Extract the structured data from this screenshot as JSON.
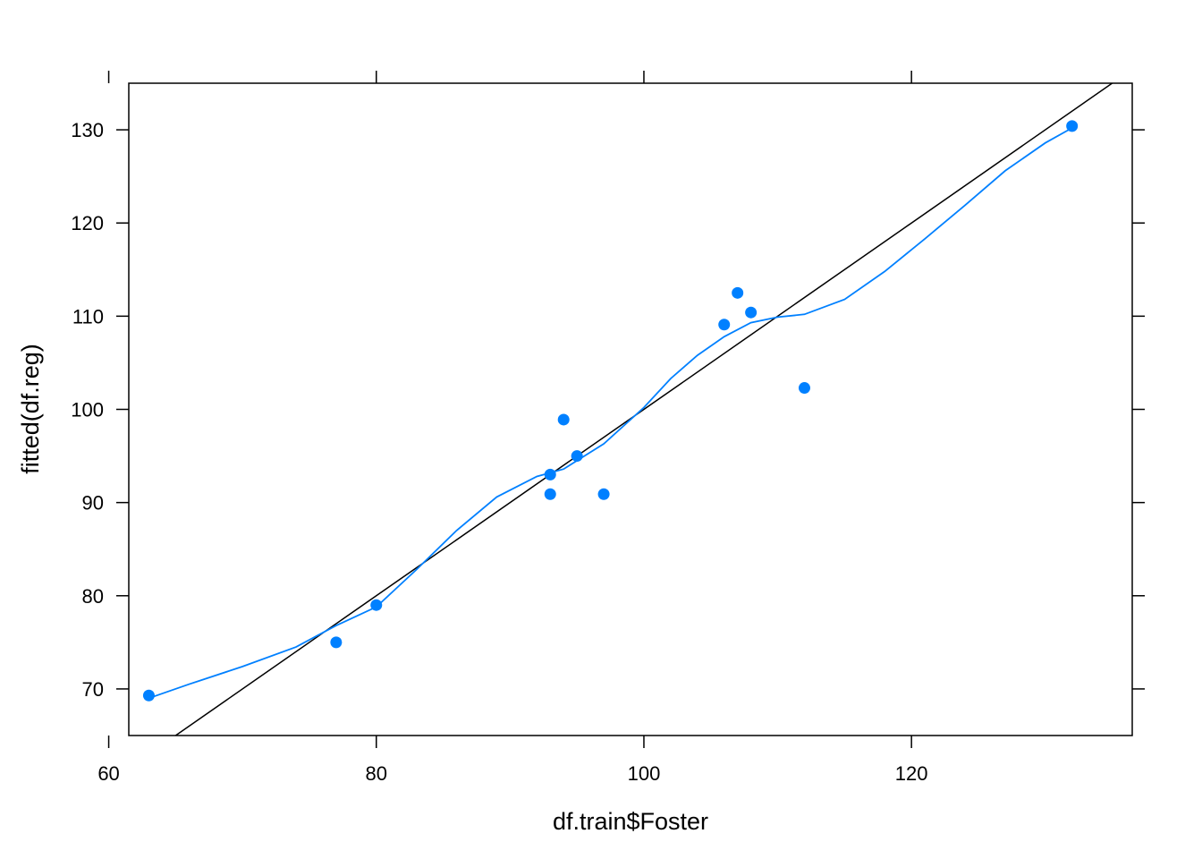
{
  "chart_data": {
    "type": "scatter",
    "xlabel": "df.train$Foster",
    "ylabel": "fitted(df.reg)",
    "xlim": [
      61.5,
      136.5
    ],
    "ylim": [
      65,
      135
    ],
    "x_ticks": [
      60,
      80,
      100,
      120
    ],
    "y_ticks": [
      70,
      80,
      90,
      100,
      110,
      120,
      130
    ],
    "x_tick_labels": [
      "60",
      "80",
      "100",
      "120"
    ],
    "y_tick_labels": [
      "70",
      "80",
      "90",
      "100",
      "110",
      "120",
      "130"
    ],
    "grid": false,
    "legend": "none",
    "points": [
      {
        "x": 63,
        "y": 69.3
      },
      {
        "x": 77,
        "y": 75.0
      },
      {
        "x": 80,
        "y": 79.0
      },
      {
        "x": 93,
        "y": 93.0
      },
      {
        "x": 93,
        "y": 90.9
      },
      {
        "x": 94,
        "y": 98.9
      },
      {
        "x": 95,
        "y": 95.0
      },
      {
        "x": 97,
        "y": 90.9
      },
      {
        "x": 106,
        "y": 109.1
      },
      {
        "x": 107,
        "y": 112.5
      },
      {
        "x": 108,
        "y": 110.4
      },
      {
        "x": 112,
        "y": 102.3
      },
      {
        "x": 132,
        "y": 130.4
      }
    ],
    "reference_line": {
      "intercept": 0,
      "slope": 1
    },
    "smooth_curve": [
      {
        "x": 63,
        "y": 69.0
      },
      {
        "x": 66,
        "y": 70.5
      },
      {
        "x": 70,
        "y": 72.4
      },
      {
        "x": 74,
        "y": 74.5
      },
      {
        "x": 77,
        "y": 76.8
      },
      {
        "x": 80,
        "y": 78.8
      },
      {
        "x": 83,
        "y": 82.8
      },
      {
        "x": 86,
        "y": 87.0
      },
      {
        "x": 89,
        "y": 90.6
      },
      {
        "x": 92,
        "y": 92.8
      },
      {
        "x": 94,
        "y": 93.6
      },
      {
        "x": 97,
        "y": 96.3
      },
      {
        "x": 100,
        "y": 100.2
      },
      {
        "x": 102,
        "y": 103.3
      },
      {
        "x": 104,
        "y": 105.8
      },
      {
        "x": 106,
        "y": 107.8
      },
      {
        "x": 108,
        "y": 109.3
      },
      {
        "x": 110,
        "y": 109.9
      },
      {
        "x": 112,
        "y": 110.2
      },
      {
        "x": 115,
        "y": 111.8
      },
      {
        "x": 118,
        "y": 114.8
      },
      {
        "x": 121,
        "y": 118.3
      },
      {
        "x": 124,
        "y": 121.9
      },
      {
        "x": 127,
        "y": 125.6
      },
      {
        "x": 130,
        "y": 128.6
      },
      {
        "x": 132,
        "y": 130.2
      }
    ],
    "colors": {
      "points": "#0080ff",
      "smooth_curve": "#0080ff",
      "reference_line": "#000000",
      "axes": "#000000"
    }
  }
}
